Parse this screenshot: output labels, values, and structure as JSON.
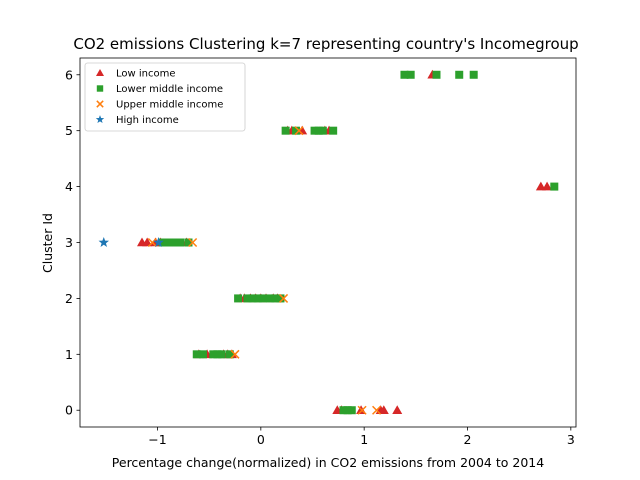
{
  "chart_data": {
    "type": "scatter",
    "title": "CO2 emissions Clustering k=7 representing country's Incomegroup",
    "xlabel": "Percentage change(normalized) in CO2 emissions from 2004 to 2014",
    "ylabel": "Cluster Id",
    "xlim": [
      -1.75,
      3.05
    ],
    "ylim": [
      -0.3,
      6.3
    ],
    "xticks": [
      -1,
      0,
      1,
      2,
      3
    ],
    "yticks": [
      0,
      1,
      2,
      3,
      4,
      5,
      6
    ],
    "xtick_labels": [
      "−1",
      "0",
      "1",
      "2",
      "3"
    ],
    "ytick_labels": [
      "0",
      "1",
      "2",
      "3",
      "4",
      "5",
      "6"
    ],
    "grid": false,
    "legend_position": "top-left",
    "series": [
      {
        "name": "Low income",
        "marker": "triangle",
        "color": "#d62728",
        "points": [
          [
            -1.15,
            3
          ],
          [
            -1.1,
            3
          ],
          [
            -1.02,
            3
          ],
          [
            -0.97,
            3
          ],
          [
            -0.72,
            3
          ],
          [
            -0.6,
            1
          ],
          [
            -0.52,
            1
          ],
          [
            -0.36,
            1
          ],
          [
            -0.32,
            1
          ],
          [
            -0.28,
            1
          ],
          [
            -0.2,
            2
          ],
          [
            -0.16,
            2
          ],
          [
            -0.1,
            2
          ],
          [
            -0.05,
            2
          ],
          [
            0.0,
            2
          ],
          [
            0.05,
            2
          ],
          [
            0.12,
            2
          ],
          [
            0.16,
            2
          ],
          [
            0.26,
            5
          ],
          [
            0.3,
            5
          ],
          [
            0.4,
            5
          ],
          [
            0.62,
            5
          ],
          [
            0.66,
            5
          ],
          [
            0.74,
            0
          ],
          [
            0.78,
            0
          ],
          [
            0.97,
            0
          ],
          [
            1.16,
            0
          ],
          [
            1.19,
            0
          ],
          [
            1.32,
            0
          ],
          [
            1.66,
            6
          ],
          [
            2.71,
            4
          ],
          [
            2.77,
            4
          ]
        ]
      },
      {
        "name": "Lower middle income",
        "marker": "square",
        "color": "#2ca02c",
        "points": [
          [
            -0.95,
            3
          ],
          [
            -0.9,
            3
          ],
          [
            -0.86,
            3
          ],
          [
            -0.82,
            3
          ],
          [
            -0.78,
            3
          ],
          [
            -0.7,
            3
          ],
          [
            -0.62,
            1
          ],
          [
            -0.56,
            1
          ],
          [
            -0.46,
            1
          ],
          [
            -0.42,
            1
          ],
          [
            -0.38,
            1
          ],
          [
            -0.3,
            1
          ],
          [
            -0.22,
            2
          ],
          [
            -0.13,
            2
          ],
          [
            -0.08,
            2
          ],
          [
            -0.03,
            2
          ],
          [
            0.02,
            2
          ],
          [
            0.09,
            2
          ],
          [
            0.14,
            2
          ],
          [
            0.19,
            2
          ],
          [
            0.24,
            5
          ],
          [
            0.34,
            5
          ],
          [
            0.52,
            5
          ],
          [
            0.56,
            5
          ],
          [
            0.6,
            5
          ],
          [
            0.7,
            5
          ],
          [
            0.8,
            0
          ],
          [
            0.84,
            0
          ],
          [
            0.88,
            0
          ],
          [
            1.39,
            6
          ],
          [
            1.45,
            6
          ],
          [
            1.7,
            6
          ],
          [
            1.92,
            6
          ],
          [
            2.06,
            6
          ],
          [
            2.84,
            4
          ]
        ]
      },
      {
        "name": "Upper middle income",
        "marker": "x",
        "color": "#ff7f0e",
        "points": [
          [
            -1.05,
            3
          ],
          [
            -0.66,
            3
          ],
          [
            -0.25,
            1
          ],
          [
            0.22,
            2
          ],
          [
            0.37,
            5
          ],
          [
            0.98,
            0
          ],
          [
            1.12,
            0
          ]
        ]
      },
      {
        "name": "High income",
        "marker": "star",
        "color": "#1f77b4",
        "points": [
          [
            -1.52,
            3
          ],
          [
            -0.99,
            3
          ]
        ]
      }
    ]
  }
}
